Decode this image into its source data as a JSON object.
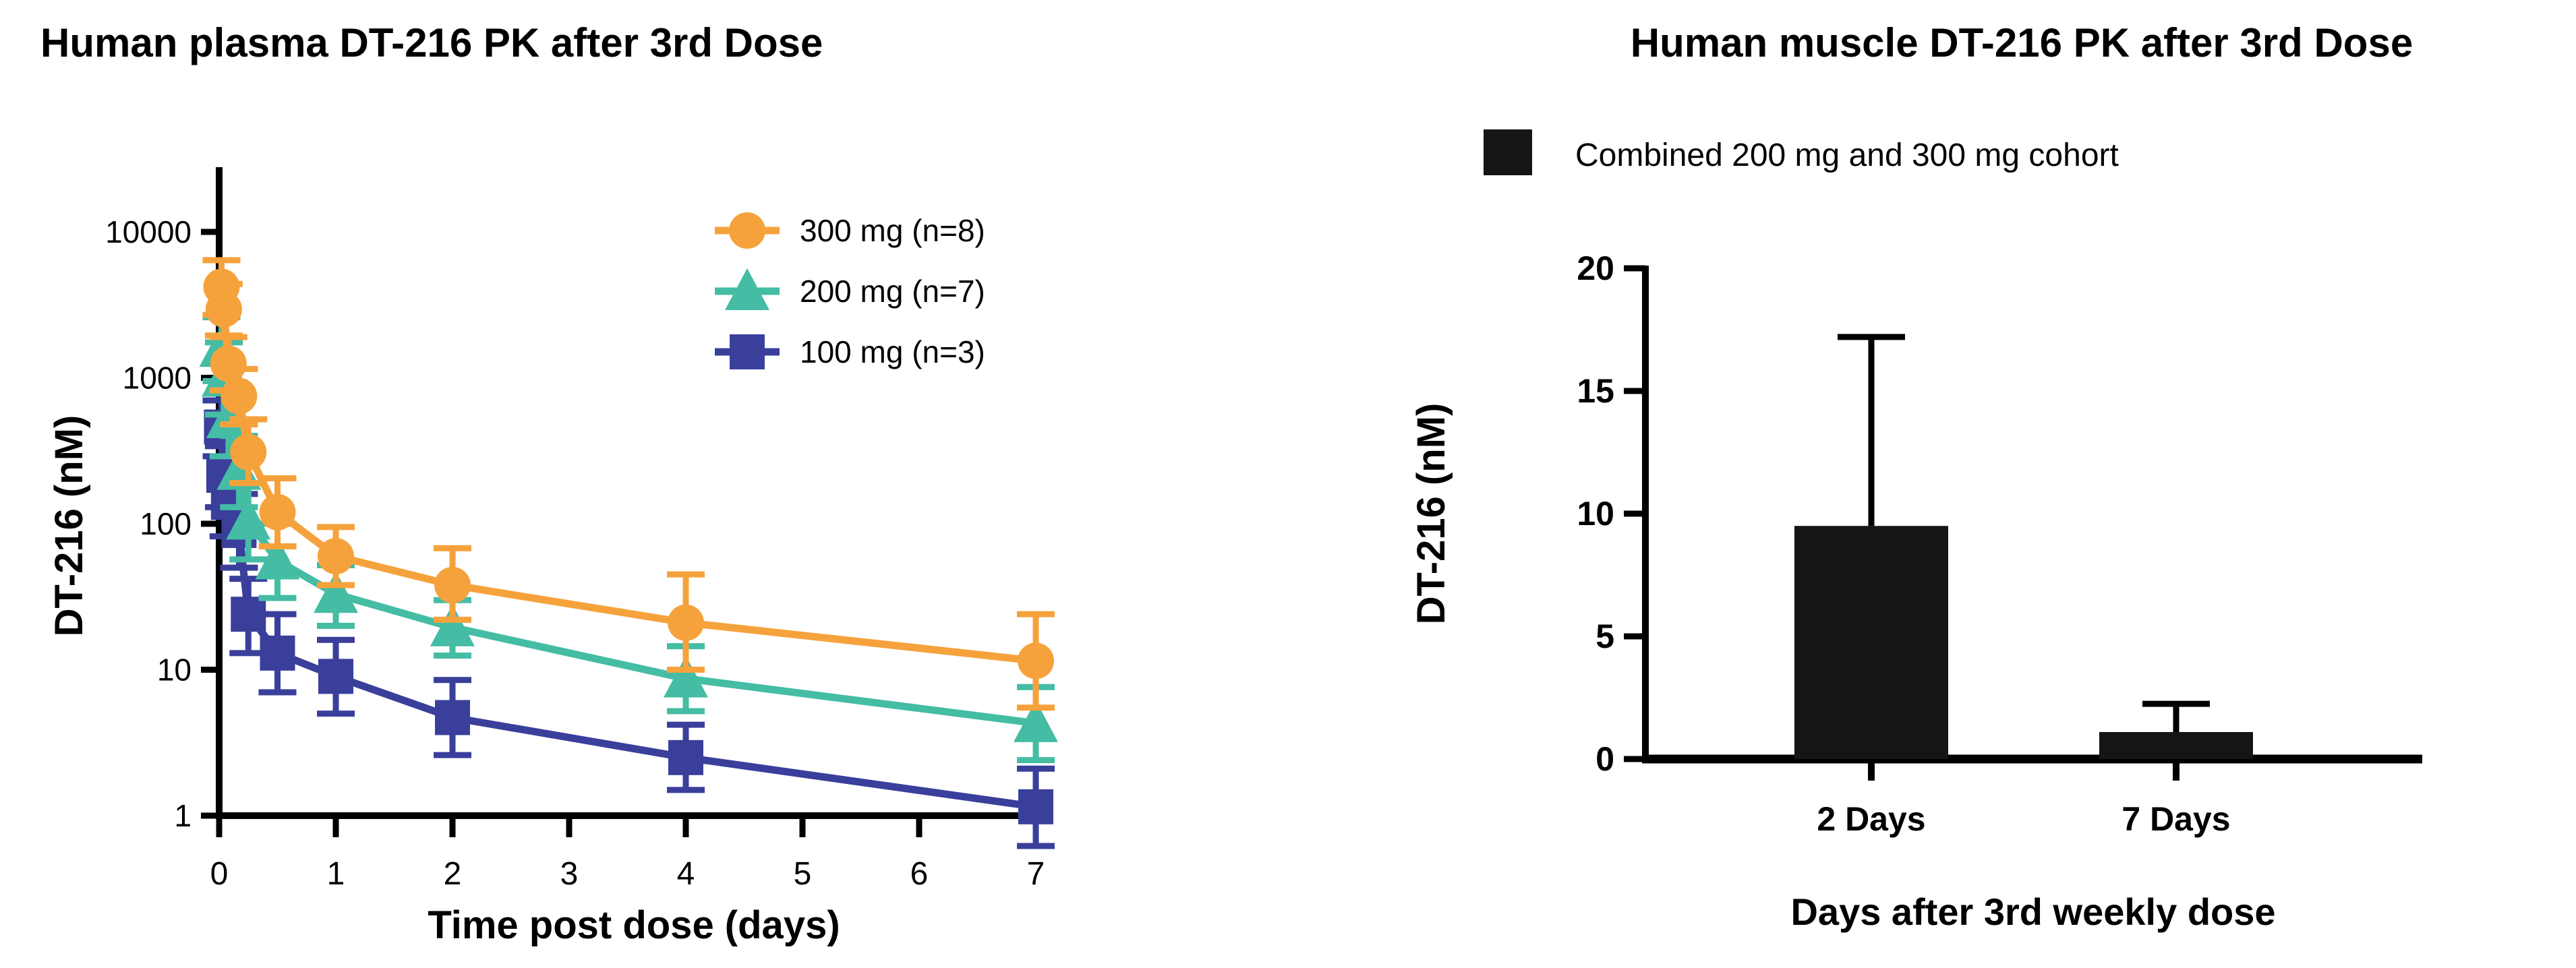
{
  "figure": {
    "background": "#ffffff",
    "text_color": "#000000"
  },
  "chart_data": [
    {
      "id": "plasma",
      "type": "line",
      "title": "Human plasma DT-216 PK after 3rd Dose",
      "xlabel": "Time post dose (days)",
      "ylabel": "DT-216 (nM)",
      "yscale": "log",
      "ylim": [
        1,
        10000
      ],
      "yticks": [
        10000,
        1000,
        100,
        10,
        1
      ],
      "ytick_labels": [
        "10000",
        "1000",
        "100",
        "10",
        "1"
      ],
      "xlim": [
        0,
        7.15
      ],
      "xticks": [
        0,
        1,
        2,
        3,
        4,
        5,
        6,
        7
      ],
      "xtick_labels": [
        "0",
        "1",
        "2",
        "3",
        "4",
        "5",
        "6",
        "7"
      ],
      "grid": false,
      "legend_position": "inside-top-right",
      "x_days": [
        0.02,
        0.04,
        0.08,
        0.17,
        0.25,
        0.5,
        1,
        2,
        4,
        7
      ],
      "series": [
        {
          "name": "300 mg (n=8)",
          "marker": "circle",
          "color": "#F6A23C",
          "values": [
            4200,
            2950,
            1250,
            750,
            310,
            120,
            60,
            38,
            21,
            11.5
          ],
          "err_hi": [
            6400,
            4400,
            1900,
            1150,
            520,
            205,
            95,
            68,
            45,
            24
          ],
          "err_lo": [
            2700,
            1950,
            820,
            480,
            190,
            70,
            38,
            22,
            10,
            5.5
          ]
        },
        {
          "name": "200 mg (n=7)",
          "marker": "triangle",
          "color": "#45BCA4",
          "values": [
            1600,
            1000,
            520,
            230,
            105,
            56,
            33,
            19.5,
            8.7,
            4.3
          ],
          "err_hi": [
            2600,
            1750,
            930,
            400,
            190,
            100,
            52,
            30,
            14.5,
            7.6
          ],
          "err_lo": [
            950,
            560,
            290,
            130,
            57,
            31,
            20,
            12.5,
            5.2,
            2.4
          ]
        },
        {
          "name": "100 mg (n=3)",
          "marker": "square",
          "color": "#3A3F9B",
          "values": [
            460,
            215,
            140,
            90,
            24,
            13,
            9,
            4.7,
            2.5,
            1.15
          ],
          "err_hi": [
            700,
            340,
            235,
            160,
            42,
            24,
            16,
            8.5,
            4.2,
            2.1
          ],
          "err_lo": [
            290,
            130,
            82,
            50,
            13,
            7,
            5,
            2.6,
            1.5,
            0.62
          ]
        }
      ]
    },
    {
      "id": "muscle",
      "type": "bar",
      "title": "Human muscle DT-216 PK after 3rd Dose",
      "legend_label": "Combined 200 mg and 300 mg cohort",
      "xlabel": "Days after 3rd weekly dose",
      "ylabel": "DT-216 (nM)",
      "ylim": [
        0,
        20
      ],
      "yticks": [
        0,
        5,
        10,
        15,
        20
      ],
      "ytick_labels": [
        "0",
        "5",
        "10",
        "15",
        "20"
      ],
      "grid": false,
      "categories": [
        "2 Days",
        "7 Days"
      ],
      "values": [
        9.5,
        1.1
      ],
      "err_hi": [
        17.2,
        2.25
      ],
      "bar_color": "#151515"
    }
  ]
}
